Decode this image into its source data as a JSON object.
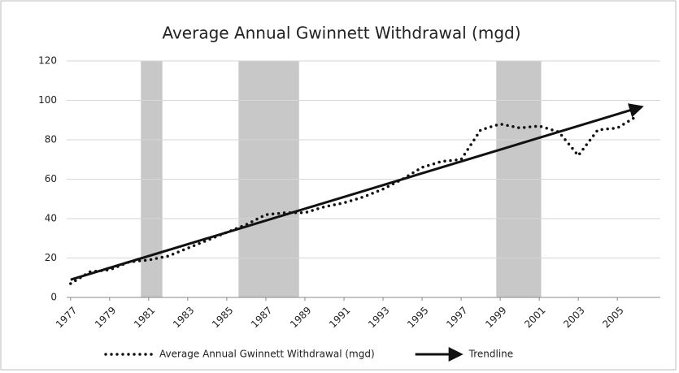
{
  "chart_data": {
    "type": "line",
    "title": "Average Annual Gwinnett Withdrawal (mgd)",
    "x": [
      1977,
      1978,
      1979,
      1980,
      1981,
      1982,
      1983,
      1984,
      1985,
      1986,
      1987,
      1988,
      1989,
      1990,
      1991,
      1992,
      1993,
      1994,
      1995,
      1996,
      1997,
      1998,
      1999,
      2000,
      2001,
      2002,
      2003,
      2004,
      2005,
      2006
    ],
    "series": [
      {
        "name": "Average Annual Gwinnett Withdrawal (mgd)",
        "color": "#111111",
        "style": "dotted",
        "values": [
          7,
          13,
          14,
          18,
          19,
          21,
          25,
          29,
          33,
          37,
          42,
          43,
          43,
          46,
          48,
          51,
          55,
          60,
          66,
          69,
          70,
          85,
          88,
          86,
          87,
          84,
          72,
          85,
          86,
          92
        ]
      },
      {
        "name": "Trendline",
        "color": "#111111",
        "style": "arrow",
        "x": [
          1977,
          2006
        ],
        "values": [
          9,
          96
        ]
      }
    ],
    "shaded_periods": [
      [
        1980.6,
        1981.7
      ],
      [
        1985.6,
        1988.7
      ],
      [
        1998.8,
        2001.1
      ]
    ],
    "shade_color": "#c8c8c8",
    "xlim": [
      1976.8,
      2007.2
    ],
    "xticks": [
      1977,
      1979,
      1981,
      1983,
      1985,
      1987,
      1989,
      1991,
      1993,
      1995,
      1997,
      1999,
      2001,
      2003,
      2005
    ],
    "ylim": [
      0,
      120
    ],
    "yticks": [
      0,
      20,
      40,
      60,
      80,
      100,
      120
    ],
    "grid": true,
    "legend": "bottom"
  }
}
